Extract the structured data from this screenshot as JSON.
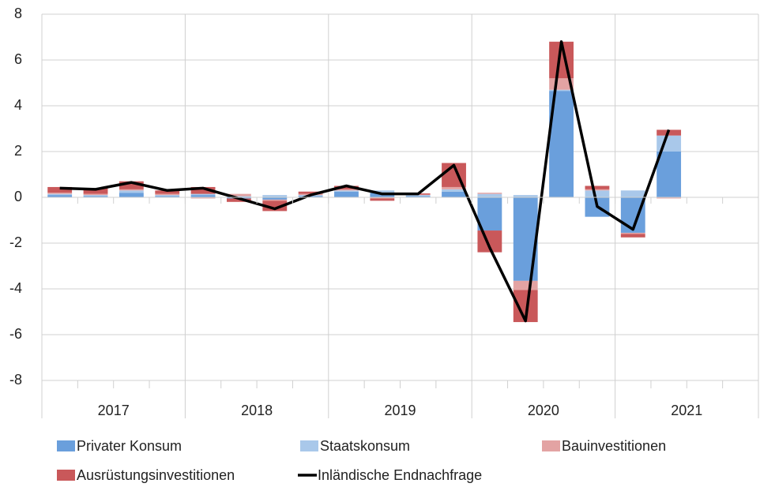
{
  "chart_data": {
    "type": "bar",
    "categories": [
      null,
      null,
      null,
      null,
      null,
      null,
      null,
      null,
      null,
      null,
      null,
      null,
      null,
      null,
      null,
      null,
      null,
      null,
      null,
      null
    ],
    "group_labels": [
      "2017",
      "2018",
      "2019",
      "2020",
      "2021"
    ],
    "ylim": [
      -8,
      8
    ],
    "yticks": [
      -8,
      -6,
      -4,
      -2,
      0,
      2,
      4,
      6,
      8
    ],
    "grid": true,
    "series": [
      {
        "name": "Privater Konsum",
        "color": "#6a9fdc",
        "values": [
          0.1,
          0.05,
          0.2,
          0.05,
          0.1,
          -0.05,
          -0.1,
          0.05,
          0.25,
          0.2,
          0.05,
          0.25,
          -1.45,
          -3.65,
          4.65,
          -0.85,
          -1.55,
          2.0,
          null,
          null
        ]
      },
      {
        "name": "Staatskonsum",
        "color": "#a9c8ea",
        "values": [
          0.05,
          0.05,
          0.1,
          0.05,
          0.05,
          0.05,
          0.1,
          0.05,
          0.05,
          0.1,
          0.05,
          0.1,
          0.15,
          0.1,
          0.05,
          0.3,
          0.3,
          0.7,
          null,
          null
        ]
      },
      {
        "name": "Bauinvestitionen",
        "color": "#e3a3a3",
        "values": [
          0.05,
          0.05,
          0.05,
          0.05,
          -0.05,
          0.1,
          -0.05,
          0.05,
          0.05,
          -0.05,
          0.02,
          0.1,
          0.05,
          -0.4,
          0.5,
          0.05,
          -0.05,
          -0.05,
          null,
          null
        ]
      },
      {
        "name": "Ausrüstungsinvestitionen",
        "color": "#c9585a",
        "values": [
          0.25,
          0.25,
          0.35,
          0.15,
          0.3,
          -0.15,
          -0.45,
          0.1,
          0.15,
          -0.1,
          0.05,
          1.05,
          -0.95,
          -1.4,
          1.6,
          0.15,
          -0.15,
          0.25,
          null,
          null
        ]
      },
      {
        "name": "Inländische Endnachfrage",
        "type": "line",
        "color": "#000000",
        "values": [
          0.4,
          0.35,
          0.65,
          0.3,
          0.4,
          -0.05,
          -0.5,
          0.1,
          0.5,
          0.15,
          0.15,
          1.4,
          -2.2,
          -5.4,
          6.8,
          -0.4,
          -1.4,
          2.95,
          null,
          null
        ]
      }
    ]
  }
}
